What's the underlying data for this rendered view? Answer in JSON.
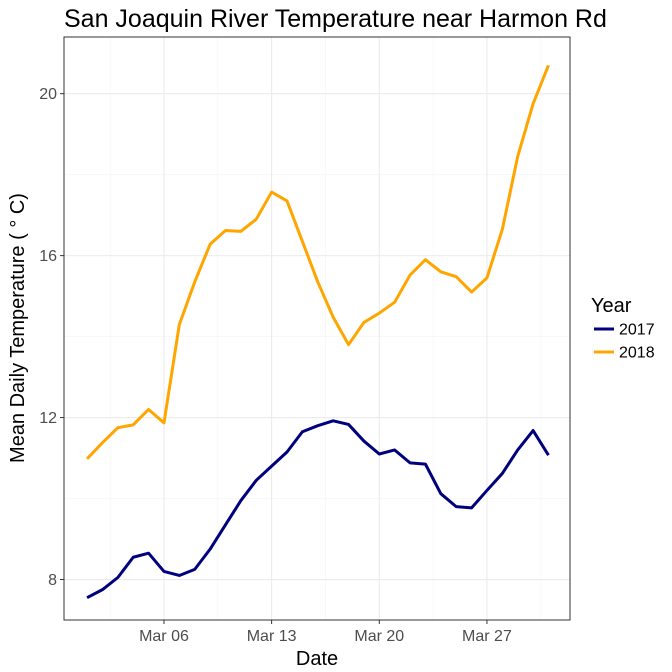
{
  "chart_data": {
    "type": "line",
    "title": "San Joaquin River Temperature near Harmon Rd",
    "xlabel": "Date",
    "ylabel": "Mean Daily Temperature ( ° C)",
    "x": [
      "Mar 01",
      "Mar 02",
      "Mar 03",
      "Mar 04",
      "Mar 05",
      "Mar 06",
      "Mar 07",
      "Mar 08",
      "Mar 09",
      "Mar 10",
      "Mar 11",
      "Mar 12",
      "Mar 13",
      "Mar 14",
      "Mar 15",
      "Mar 16",
      "Mar 17",
      "Mar 18",
      "Mar 19",
      "Mar 20",
      "Mar 21",
      "Mar 22",
      "Mar 23",
      "Mar 24",
      "Mar 25",
      "Mar 26",
      "Mar 27",
      "Mar 28",
      "Mar 29",
      "Mar 30",
      "Mar 31"
    ],
    "xlim": [
      "Mar 01",
      "Mar 31"
    ],
    "x_ticks": [
      "Mar 06",
      "Mar 13",
      "Mar 20",
      "Mar 27"
    ],
    "ylim": [
      7,
      21.4
    ],
    "y_ticks": [
      8,
      12,
      16,
      20
    ],
    "y_minor_ticks": [
      10,
      14,
      18
    ],
    "grid": true,
    "legend": {
      "title": "Year",
      "position": "right"
    },
    "series": [
      {
        "name": "2017",
        "color": "#00007f",
        "values": [
          7.55,
          7.75,
          8.05,
          8.55,
          8.65,
          8.2,
          8.1,
          8.25,
          8.75,
          9.35,
          9.95,
          10.45,
          10.8,
          11.15,
          11.65,
          11.8,
          11.92,
          11.83,
          11.42,
          11.1,
          11.2,
          10.88,
          10.85,
          10.12,
          9.8,
          9.77,
          10.2,
          10.62,
          11.2,
          11.68,
          11.07
        ]
      },
      {
        "name": "2018",
        "color": "#ffa500",
        "values": [
          10.98,
          11.38,
          11.75,
          11.82,
          12.2,
          11.87,
          14.3,
          15.35,
          16.28,
          16.62,
          16.6,
          16.9,
          17.57,
          17.35,
          16.35,
          15.35,
          14.48,
          13.8,
          14.35,
          14.58,
          14.85,
          15.52,
          15.9,
          15.6,
          15.48,
          15.1,
          15.45,
          16.65,
          18.45,
          19.75,
          20.7
        ]
      }
    ]
  }
}
